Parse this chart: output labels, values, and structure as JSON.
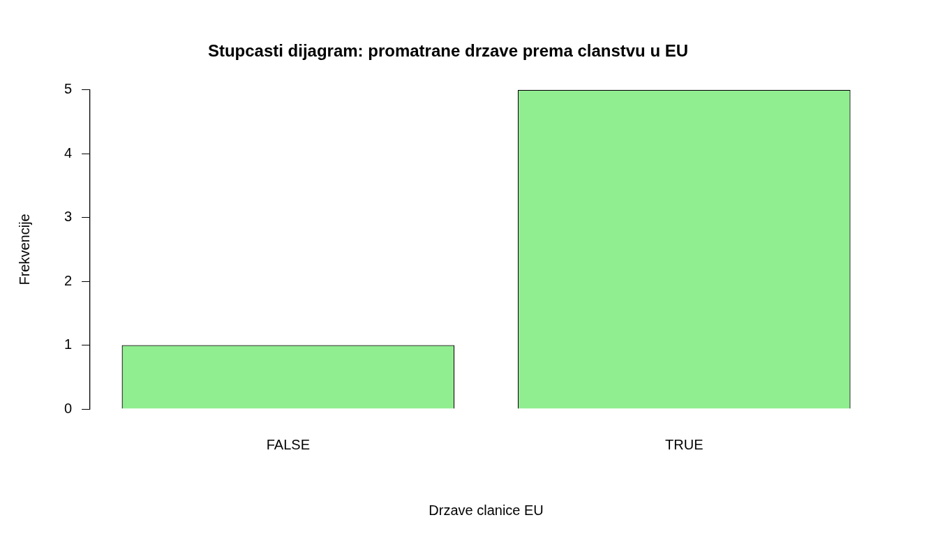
{
  "chart_data": {
    "type": "bar",
    "title": "Stupcasti dijagram: promatrane drzave prema clanstvu u EU",
    "xlabel": "Drzave clanice EU",
    "ylabel": "Frekvencije",
    "categories": [
      "FALSE",
      "TRUE"
    ],
    "values": [
      1,
      5
    ],
    "color": "#90ee90",
    "ylim": [
      0,
      5
    ],
    "yticks": [
      0,
      1,
      2,
      3,
      4,
      5
    ],
    "legend": false
  }
}
